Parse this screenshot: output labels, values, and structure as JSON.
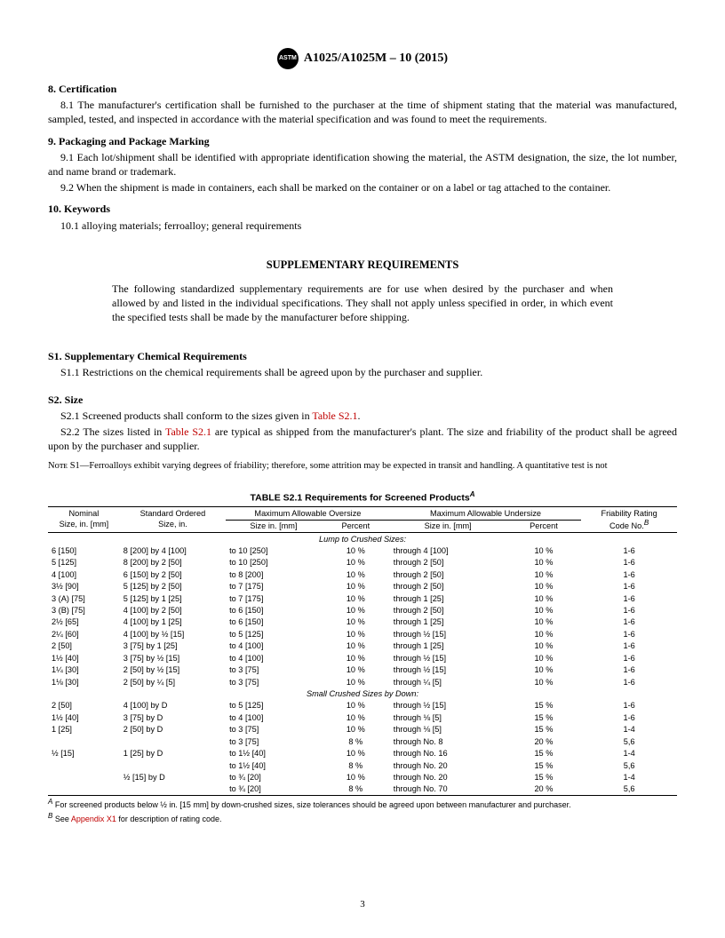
{
  "header": {
    "logo_text": "ASTM",
    "doc_id": "A1025/A1025M – 10 (2015)"
  },
  "sections": [
    {
      "num": "8.",
      "title": "Certification",
      "paras": [
        "8.1 The manufacturer's certification shall be furnished to the purchaser at the time of shipment stating that the material was manufactured, sampled, tested, and inspected in accordance with the material specification and was found to meet the requirements."
      ]
    },
    {
      "num": "9.",
      "title": "Packaging and Package Marking",
      "paras": [
        "9.1 Each lot/shipment shall be identified with appropriate identification showing the material, the ASTM designation, the size, the lot number, and name brand or trademark.",
        "9.2 When the shipment is made in containers, each shall be marked on the container or on a label or tag attached to the container."
      ]
    },
    {
      "num": "10.",
      "title": "Keywords",
      "paras": [
        "10.1 alloying materials; ferroalloy; general requirements"
      ]
    }
  ],
  "supp": {
    "title": "SUPPLEMENTARY REQUIREMENTS",
    "intro": "The following standardized supplementary requirements are for use when desired by the purchaser and when allowed by and listed in the individual specifications. They shall not apply unless specified in order, in which event the specified tests shall be made by the manufacturer before shipping."
  },
  "s1": {
    "head": "S1. Supplementary Chemical Requirements",
    "para": "S1.1 Restrictions on the chemical requirements shall be agreed upon by the purchaser and supplier."
  },
  "s2": {
    "head": "S2. Size",
    "p1_a": "S2.1 Screened products shall conform to the sizes given in ",
    "p1_link": "Table S2.1",
    "p1_b": ".",
    "p2_a": "S2.2 The sizes listed in ",
    "p2_link": "Table S2.1",
    "p2_b": " are typical as shipped from the manufacturer's plant. The size and friability of the product shall be agreed upon by the purchaser and supplier."
  },
  "note": {
    "label": "Nᴏᴛᴇ S1",
    "text": "—Ferroalloys exhibit varying degrees of friability; therefore, some attrition may be expected in transit and handling. A quantitative test is not"
  },
  "table": {
    "title_a": "TABLE S2.1 Requirements for Screened Products",
    "title_sup": "A",
    "head_nominal": "Nominal\nSize, in. [mm]",
    "head_ordered": "Standard Ordered\nSize, in.",
    "head_over": "Maximum Allowable Oversize",
    "head_under": "Maximum Allowable Undersize",
    "head_fri_a": "Friability Rating\nCode No.",
    "head_fri_sup": "B",
    "sub_size": "Size in. [mm]",
    "sub_pct": "Percent",
    "group1": "Lump to Crushed Sizes:",
    "group2": "Small Crushed Sizes by Down:",
    "rows1": [
      [
        "6 [150]",
        "8 [200] by 4 [100]",
        "to 10 [250]",
        "10 %",
        "through 4 [100]",
        "10 %",
        "1-6"
      ],
      [
        "5 [125]",
        "8 [200] by 2 [50]",
        "to 10 [250]",
        "10 %",
        "through 2 [50]",
        "10 %",
        "1-6"
      ],
      [
        "4 [100]",
        "6 [150] by 2 [50]",
        "to 8 [200]",
        "10 %",
        "through 2 [50]",
        "10 %",
        "1-6"
      ],
      [
        "3½ [90]",
        "5 [125] by 2 [50]",
        "to 7 [175]",
        "10 %",
        "through 2 [50]",
        "10 %",
        "1-6"
      ],
      [
        "3 (A) [75]",
        "5 [125] by 1 [25]",
        "to 7 [175]",
        "10 %",
        "through 1 [25]",
        "10 %",
        "1-6"
      ],
      [
        "3 (B) [75]",
        "4 [100] by 2 [50]",
        "to 6 [150]",
        "10 %",
        "through 2 [50]",
        "10 %",
        "1-6"
      ],
      [
        "2½ [65]",
        "4 [100] by 1 [25]",
        "to 6 [150]",
        "10 %",
        "through 1 [25]",
        "10 %",
        "1-6"
      ],
      [
        "2¼ [60]",
        "4 [100] by ½ [15]",
        "to 5 [125]",
        "10 %",
        "through ½ [15]",
        "10 %",
        "1-6"
      ],
      [
        "2 [50]",
        "3 [75] by 1 [25]",
        "to 4 [100]",
        "10 %",
        "through 1 [25]",
        "10 %",
        "1-6"
      ],
      [
        "1½ [40]",
        "3 [75] by ½ [15]",
        "to 4 [100]",
        "10 %",
        "through ½ [15]",
        "10 %",
        "1-6"
      ],
      [
        "1¼ [30]",
        "2 [50] by ½ [15]",
        "to 3 [75]",
        "10 %",
        "through ½ [15]",
        "10 %",
        "1-6"
      ],
      [
        "1⅛ [30]",
        "2 [50] by ¼ [5]",
        "to 3 [75]",
        "10 %",
        "through ¼ [5]",
        "10 %",
        "1-6"
      ]
    ],
    "rows2": [
      [
        "2 [50]",
        "4 [100] by D",
        "to 5 [125]",
        "10 %",
        "through ½ [15]",
        "15 %",
        "1-6"
      ],
      [
        "1½ [40]",
        "3 [75] by D",
        "to 4 [100]",
        "10 %",
        "through ⅛ [5]",
        "15 %",
        "1-6"
      ],
      [
        "1 [25]",
        "2 [50] by D",
        "to 3 [75]",
        "10 %",
        "through ⅛ [5]",
        "15 %",
        "1-4"
      ],
      [
        "",
        "",
        "to 3 [75]",
        "8 %",
        "through No. 8",
        "20 %",
        "5,6"
      ],
      [
        "½ [15]",
        "1 [25] by D",
        "to 1½ [40]",
        "10 %",
        "through No. 16",
        "15 %",
        "1-4"
      ],
      [
        "",
        "",
        "to 1½ [40]",
        "8 %",
        "through No. 20",
        "15 %",
        "5,6"
      ],
      [
        "",
        "½ [15] by D",
        "to ¾ [20]",
        "10 %",
        "through No. 20",
        "15 %",
        "1-4"
      ],
      [
        "",
        "",
        "to ¾ [20]",
        "8 %",
        "through No. 70",
        "20 %",
        "5,6"
      ]
    ],
    "footA_sup": "A",
    "footA": " For screened products below ½ in. [15 mm] by down-crushed sizes, size tolerances should be agreed upon between manufacturer and purchaser.",
    "footB_sup": "B",
    "footB_a": " See ",
    "footB_link": "Appendix X1",
    "footB_b": " for description of rating code."
  },
  "page_num": "3"
}
